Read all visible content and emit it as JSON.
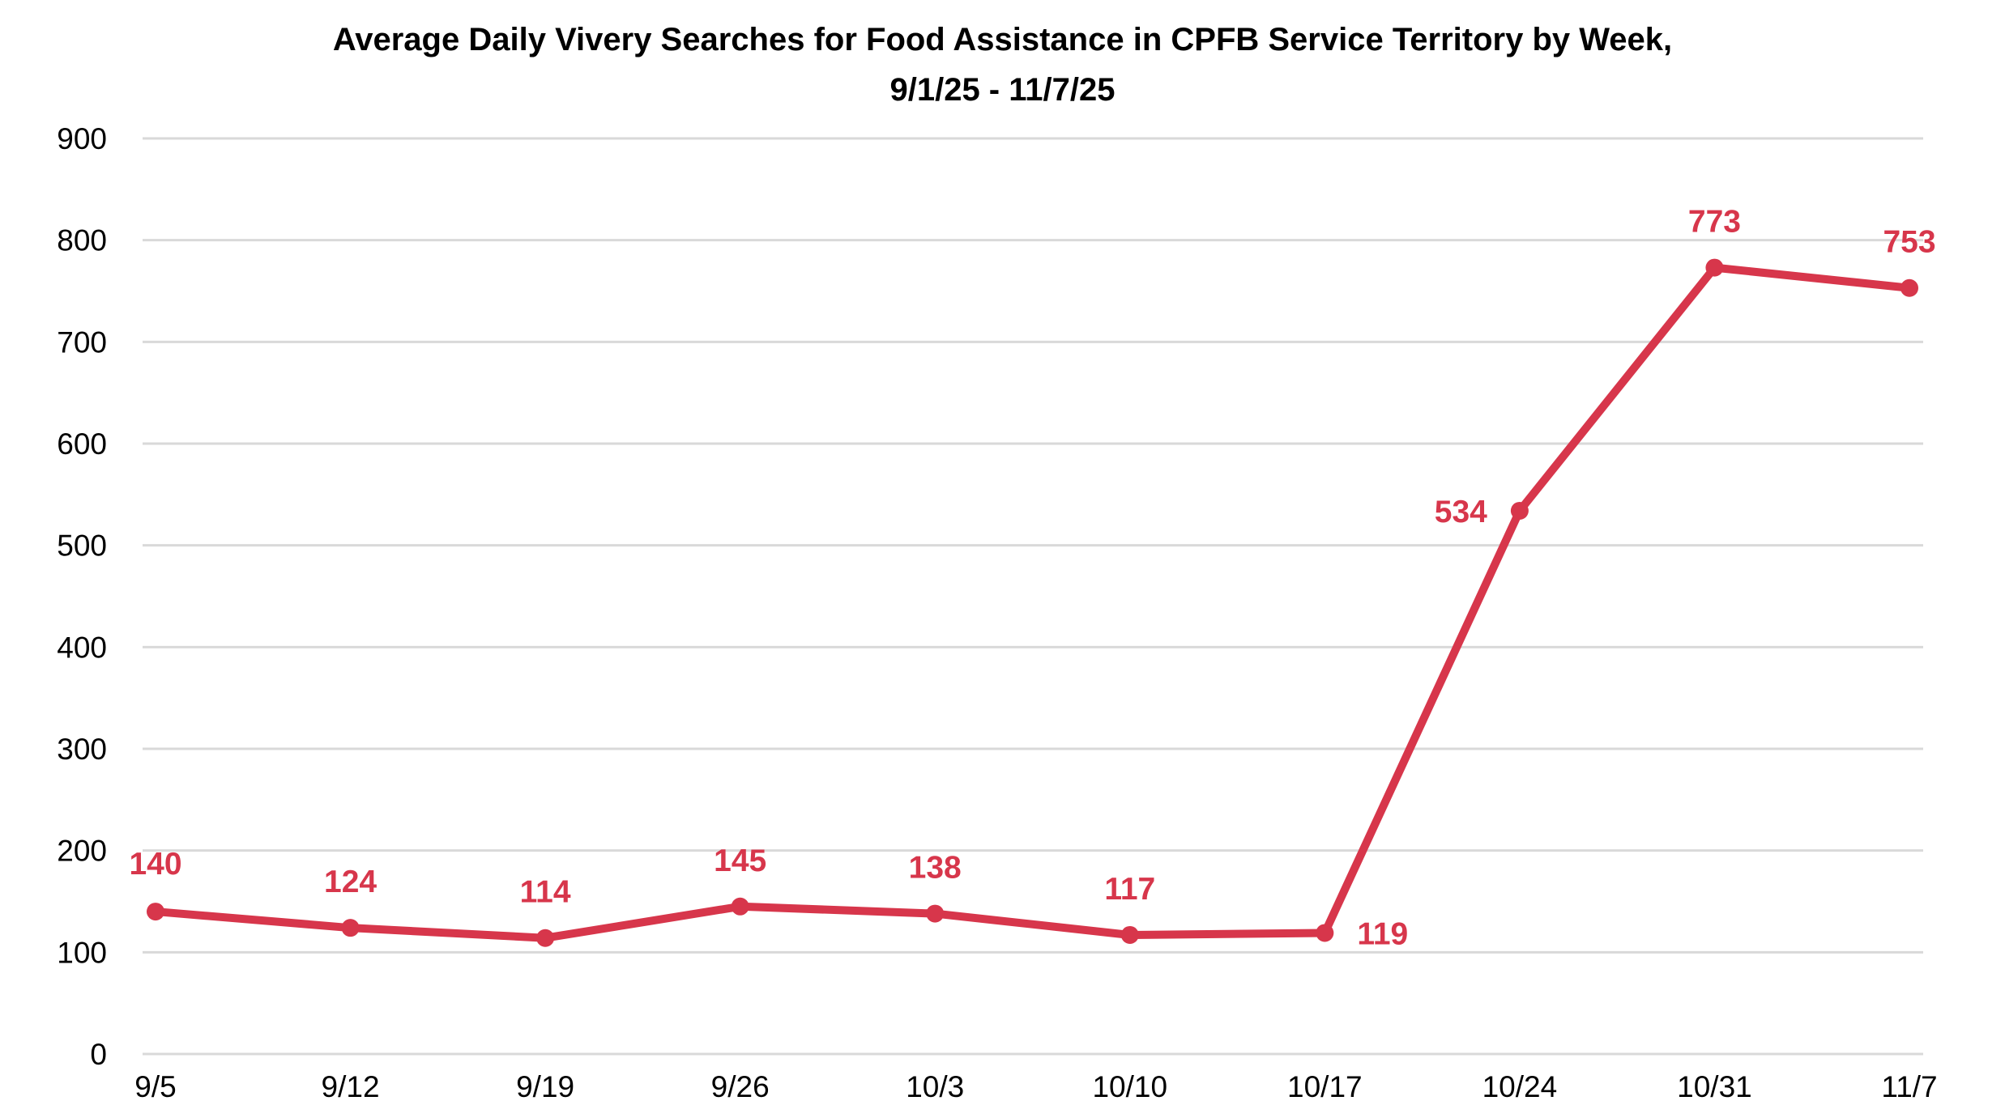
{
  "chart_data": {
    "type": "line",
    "title": "Average Daily Vivery Searches for Food Assistance in CPFB Service Territory by Week,",
    "subtitle": "9/1/25 - 11/7/25",
    "xlabel": "",
    "ylabel": "",
    "categories": [
      "9/5",
      "9/12",
      "9/19",
      "9/26",
      "10/3",
      "10/10",
      "10/17",
      "10/24",
      "10/31",
      "11/7"
    ],
    "values": [
      140,
      124,
      114,
      145,
      138,
      117,
      119,
      534,
      773,
      753
    ],
    "ylim": [
      0,
      900
    ],
    "yticks": [
      0,
      100,
      200,
      300,
      400,
      500,
      600,
      700,
      800,
      900
    ],
    "grid": true,
    "data_labels": true,
    "legend": "none",
    "colors": {
      "series": "#d7364b",
      "grid": "#d9d9d9",
      "text": "#000000"
    }
  }
}
